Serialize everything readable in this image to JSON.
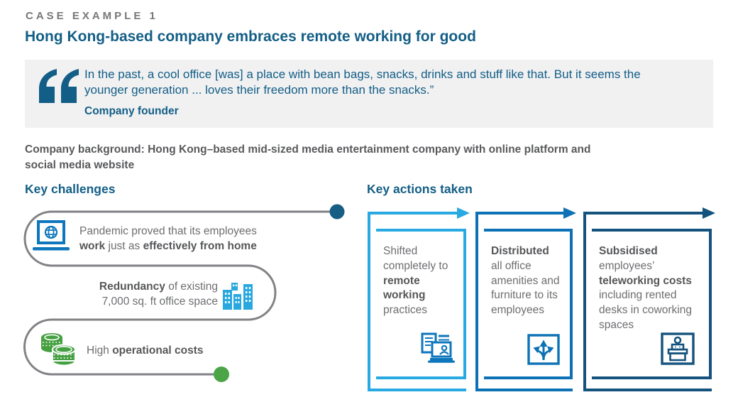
{
  "header": {
    "case_label": "CASE EXAMPLE 1",
    "title": "Hong Kong-based company embraces remote working for good"
  },
  "quote": {
    "mark_color": "#135E86",
    "lines": [
      "In the past, a cool office [was] a place with bean bags, snacks, drinks and stuff like that. But it seems the",
      "younger generation ... loves their freedom more than the snacks.”"
    ],
    "attribution": "Company founder"
  },
  "company_background": {
    "lines": [
      "Company background: Hong Kong–based mid-sized media entertainment company with online platform and",
      "social media website"
    ]
  },
  "challenges": {
    "heading": "Key challenges",
    "path_color": "#808285",
    "start_dot_color": "#175D84",
    "end_dot_color": "#4BA546",
    "items": [
      {
        "icon": "laptop-globe-icon",
        "icon_color": "#0E76BC",
        "lines": [
          [
            {
              "t": "Pandemic proved that its employees",
              "b": false
            }
          ],
          [
            {
              "t": "work",
              "b": true
            },
            {
              "t": " just as ",
              "b": false
            },
            {
              "t": "effectively from home",
              "b": true
            }
          ]
        ]
      },
      {
        "icon": "buildings-icon",
        "icon_color": "#29A8E0",
        "lines": [
          [
            {
              "t": "Redundancy",
              "b": true
            },
            {
              "t": " of existing",
              "b": false
            }
          ],
          [
            {
              "t": "7,000 sq. ft office space",
              "b": false
            }
          ]
        ]
      },
      {
        "icon": "coins-icon",
        "icon_color": "#45A041",
        "lines": [
          [
            {
              "t": "High ",
              "b": false
            },
            {
              "t": "operational costs",
              "b": true
            }
          ]
        ]
      }
    ]
  },
  "actions": {
    "heading": "Key actions taken",
    "cards": [
      {
        "color": "#29A9E1",
        "icon": "video-call-documents-icon",
        "icon_color": "#0E76BC",
        "segments": [
          {
            "t": "Shifted completely to ",
            "b": false
          },
          {
            "t": "remote working",
            "b": true
          },
          {
            "t": " practices",
            "b": false
          }
        ]
      },
      {
        "color": "#0D72B5",
        "icon": "diverging-arrows-icon",
        "icon_color": "#0D72B5",
        "segments": [
          {
            "t": "Distributed",
            "b": true
          },
          {
            "t": " all office amenities and furniture to its employees",
            "b": false
          }
        ]
      },
      {
        "color": "#14537D",
        "icon": "reception-desk-icon",
        "icon_color": "#14537D",
        "segments": [
          {
            "t": "Subsidised",
            "b": true
          },
          {
            "t": " employees’ ",
            "b": false
          },
          {
            "t": "teleworking costs",
            "b": true
          },
          {
            "t": " including rented desks in coworking spaces",
            "b": false
          }
        ]
      }
    ]
  }
}
